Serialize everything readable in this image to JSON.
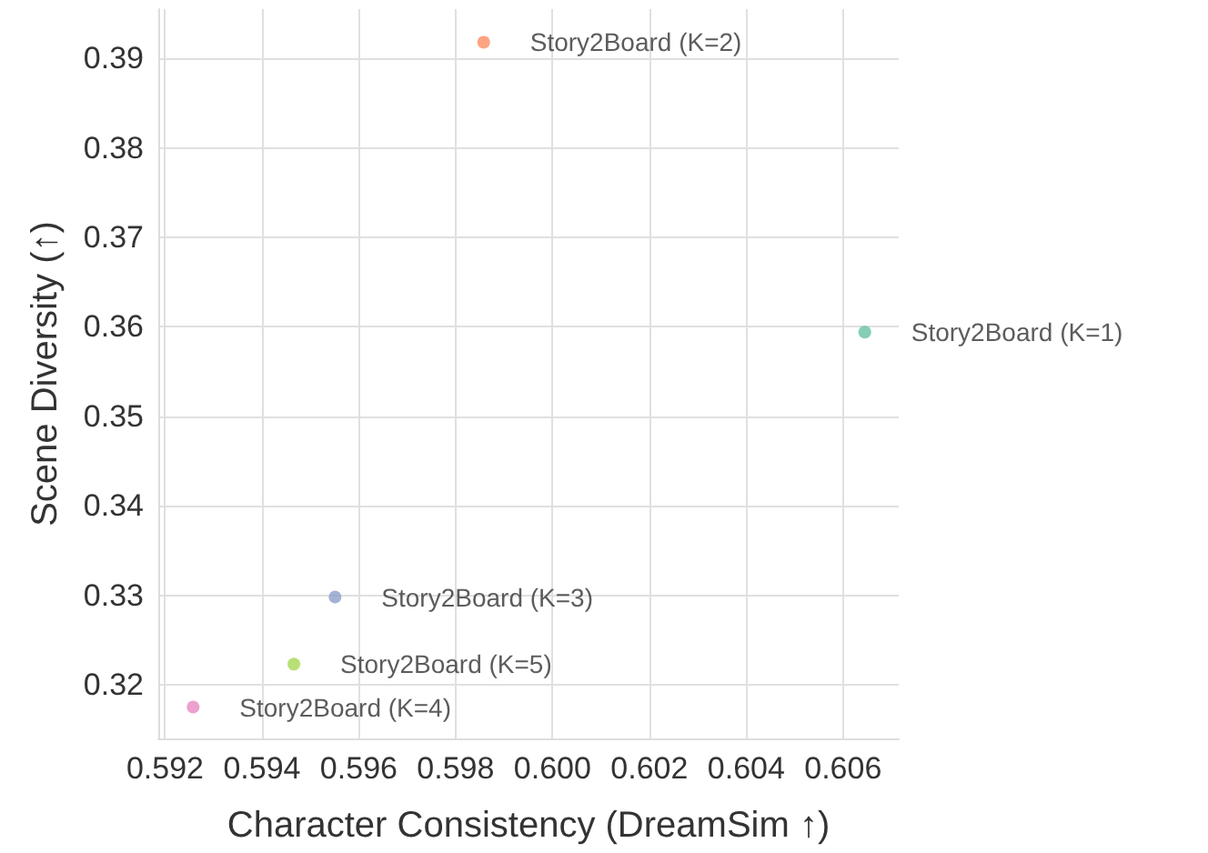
{
  "chart_data": {
    "type": "scatter",
    "xlabel": "Character Consistency (DreamSim ↑)",
    "ylabel": "Scene Diversity (↑)",
    "series": [
      {
        "name": "Story2Board (K=1)",
        "color": "#66c2a5",
        "x": [
          0.60645
        ],
        "values": [
          0.3594
        ]
      },
      {
        "name": "Story2Board (K=2)",
        "color": "#fc8d62",
        "x": [
          0.59858
        ],
        "values": [
          0.3918
        ]
      },
      {
        "name": "Story2Board (K=3)",
        "color": "#8da0cb",
        "x": [
          0.59551
        ],
        "values": [
          0.3298
        ]
      },
      {
        "name": "Story2Board (K=4)",
        "color": "#e78ac3",
        "x": [
          0.59258
        ],
        "values": [
          0.3175
        ]
      },
      {
        "name": "Story2Board (K=5)",
        "color": "#a6d854",
        "x": [
          0.59466
        ],
        "values": [
          0.3223
        ]
      }
    ],
    "xlim": [
      0.59186,
      0.60715
    ],
    "xticks": [
      {
        "value": 0.592,
        "label": "0.592"
      },
      {
        "value": 0.594,
        "label": "0.594"
      },
      {
        "value": 0.596,
        "label": "0.596"
      },
      {
        "value": 0.598,
        "label": "0.598"
      },
      {
        "value": 0.6,
        "label": "0.600"
      },
      {
        "value": 0.602,
        "label": "0.602"
      },
      {
        "value": 0.604,
        "label": "0.604"
      },
      {
        "value": 0.606,
        "label": "0.606"
      }
    ],
    "ylim": [
      0.314,
      0.3955
    ],
    "yticks": [
      {
        "value": 0.32,
        "label": "0.32"
      },
      {
        "value": 0.33,
        "label": "0.33"
      },
      {
        "value": 0.34,
        "label": "0.34"
      },
      {
        "value": 0.35,
        "label": "0.35"
      },
      {
        "value": 0.36,
        "label": "0.36"
      },
      {
        "value": 0.37,
        "label": "0.37"
      },
      {
        "value": 0.38,
        "label": "0.38"
      },
      {
        "value": 0.39,
        "label": "0.39"
      }
    ],
    "grid": true,
    "legend": false,
    "marker": "circle"
  }
}
